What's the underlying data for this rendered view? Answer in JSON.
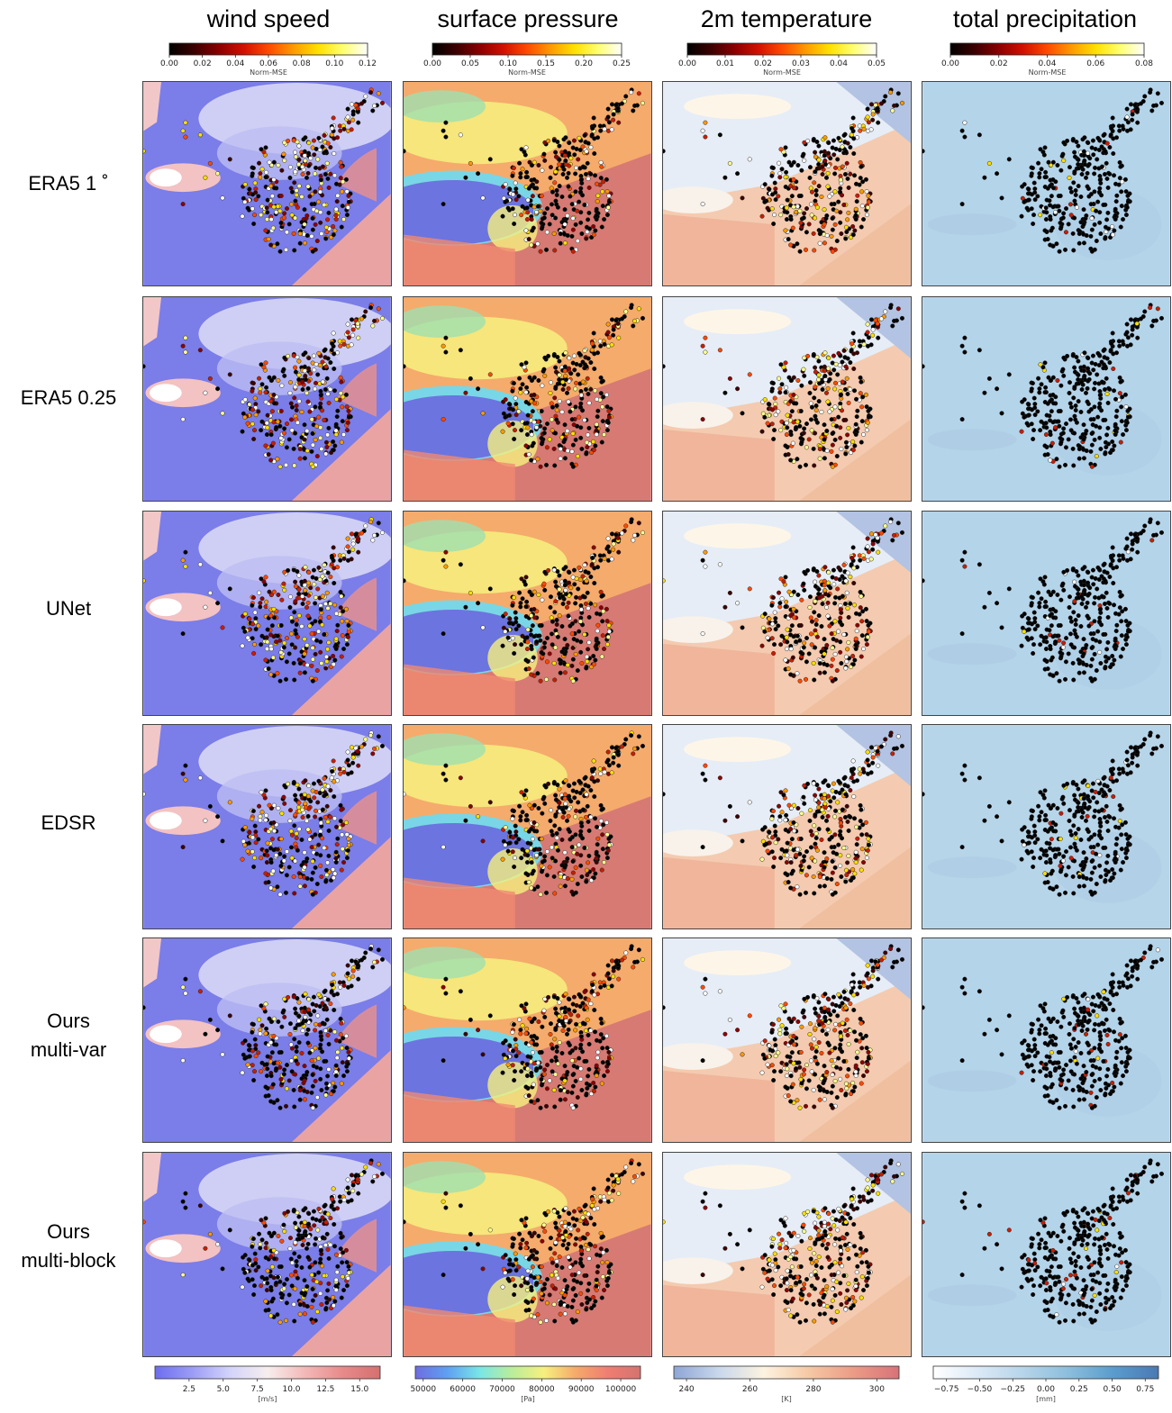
{
  "figure": {
    "columns": [
      {
        "id": "wind",
        "title": "wind speed"
      },
      {
        "id": "pressure",
        "title": "surface pressure"
      },
      {
        "id": "temperature",
        "title": "2m  temperature"
      },
      {
        "id": "precip",
        "title": "total precipitation"
      }
    ],
    "rows": [
      {
        "lines": [
          "ERA5 1 ˚"
        ]
      },
      {
        "lines": [
          "ERA5 0.25"
        ]
      },
      {
        "lines": [
          "UNet"
        ]
      },
      {
        "lines": [
          "EDSR"
        ]
      },
      {
        "lines": [
          "Ours",
          "multi-var"
        ]
      },
      {
        "lines": [
          "Ours",
          "multi-block"
        ]
      }
    ]
  },
  "chart_data": {
    "type": "heatmap",
    "description_of_marks": "station scatter over gridded field",
    "error_colorbars": [
      {
        "column": "wind",
        "label": "Norm-MSE",
        "range": [
          0,
          0.12
        ],
        "ticks": [
          "0.00",
          "0.02",
          "0.04",
          "0.06",
          "0.08",
          "0.10",
          "0.12"
        ],
        "colormap": "hot"
      },
      {
        "column": "pressure",
        "label": "Norm-MSE",
        "range": [
          0,
          0.25
        ],
        "ticks": [
          "0.00",
          "0.05",
          "0.10",
          "0.15",
          "0.20",
          "0.25"
        ],
        "colormap": "hot"
      },
      {
        "column": "temperature",
        "label": "Norm-MSE",
        "range": [
          0,
          0.05
        ],
        "ticks": [
          "0.00",
          "0.01",
          "0.02",
          "0.03",
          "0.04",
          "0.05"
        ],
        "colormap": "hot"
      },
      {
        "column": "precip",
        "label": "Norm-MSE",
        "range": [
          0,
          0.08
        ],
        "ticks": [
          "0.00",
          "0.02",
          "0.04",
          "0.06",
          "0.08"
        ],
        "colormap": "hot"
      }
    ],
    "field_colorbars": [
      {
        "column": "wind",
        "unit": "[m/s]",
        "range": [
          0,
          16.5
        ],
        "ticks": [
          "2.5",
          "5.0",
          "7.5",
          "10.0",
          "12.5",
          "15.0"
        ],
        "tick_values": [
          2.5,
          5.0,
          7.5,
          10.0,
          12.5,
          15.0
        ],
        "colormap": "bwr"
      },
      {
        "column": "pressure",
        "unit": "[Pa]",
        "range": [
          48000,
          105000
        ],
        "ticks": [
          "50000",
          "60000",
          "70000",
          "80000",
          "90000",
          "100000"
        ],
        "tick_values": [
          50000,
          60000,
          70000,
          80000,
          90000,
          100000
        ],
        "colormap": "jet"
      },
      {
        "column": "temperature",
        "unit": "[K]",
        "range": [
          236,
          307
        ],
        "ticks": [
          "240",
          "260",
          "280",
          "300"
        ],
        "tick_values": [
          240,
          260,
          280,
          300
        ],
        "colormap": "coolwarm"
      },
      {
        "column": "precip",
        "unit": "[mm]",
        "range": [
          -0.85,
          0.85
        ],
        "ticks": [
          "−0.75",
          "−0.50",
          "−0.25",
          "0.00",
          "0.25",
          "0.50",
          "0.75"
        ],
        "tick_values": [
          -0.75,
          -0.5,
          -0.25,
          0.0,
          0.25,
          0.5,
          0.75
        ],
        "colormap": "Blues"
      }
    ]
  },
  "colors": {
    "hot": [
      "#000000",
      "#3c0000",
      "#8b0000",
      "#d11000",
      "#ff4a00",
      "#ff9a00",
      "#ffe000",
      "#ffff70",
      "#ffffff"
    ],
    "bwr": [
      "#6d6df0",
      "#9c9cf6",
      "#d3d3fb",
      "#f7eeee",
      "#f3b8b8",
      "#e88a8a",
      "#d47070"
    ],
    "jet": [
      "#6d6de0",
      "#5fa0f2",
      "#79e6e6",
      "#b9ee9a",
      "#f6f07e",
      "#f5a96a",
      "#ef7d72",
      "#d47370"
    ],
    "coolwarm": [
      "#8ea6d6",
      "#c9d7ec",
      "#fdf3e0",
      "#f5c8a4",
      "#ec9b86",
      "#d8727a"
    ],
    "Blues": [
      "#ffffff",
      "#dbe9f6",
      "#b6d4ea",
      "#8cbedc",
      "#5a9ccd",
      "#4a79b4"
    ]
  }
}
